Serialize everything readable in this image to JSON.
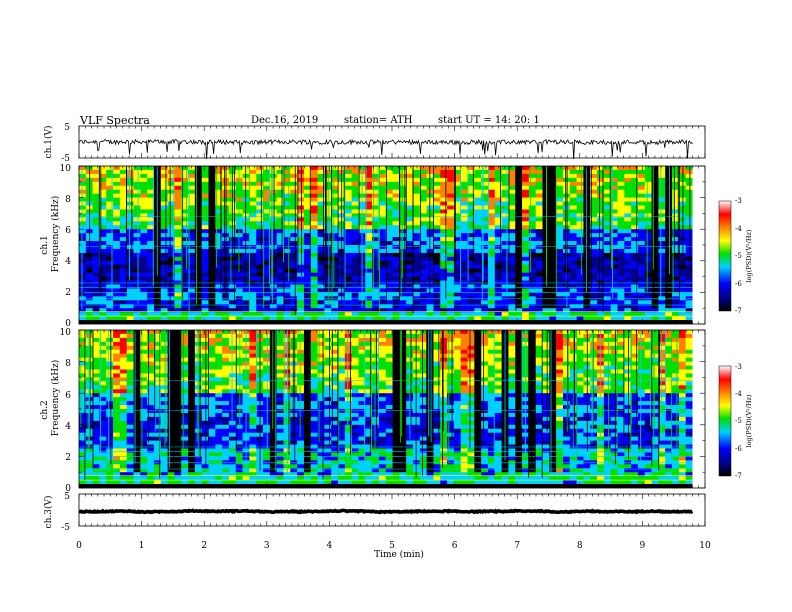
{
  "header": {
    "title": "VLF  Spectra",
    "date": "Dec.16, 2019",
    "station": "station= ATH",
    "start": "start  UT  =   14: 20: 1"
  },
  "colors": {
    "black": "#000000",
    "dark_blue": "#00008b",
    "blue": "#0000ff",
    "cyan": "#00d0ff",
    "green": "#00e000",
    "yellow": "#ffff00",
    "orange": "#ff8000",
    "red": "#ff0000",
    "white": "#ffffff"
  },
  "chart_data": [
    {
      "type": "line",
      "name": "ch1-waveform",
      "ylabel": "ch.1(V)",
      "ylim": [
        -5,
        5
      ],
      "yticks": [
        "5",
        "-5"
      ],
      "xlim": [
        0,
        10
      ],
      "description_values": {
        "mean_level": 0.0,
        "noise_amplitude": 0.7
      }
    },
    {
      "type": "heatmap",
      "name": "ch1-spectrogram",
      "ylabel_line1": "ch.1",
      "ylabel_line2": "Frequency  (kHz)",
      "ylim": [
        0,
        10
      ],
      "yticks": [
        "0",
        "2",
        "4",
        "6",
        "8",
        "10"
      ],
      "xlim": [
        0,
        9.8
      ],
      "colorbar": {
        "label": "log(PSD)(V²/Hz)",
        "range": [
          -7,
          -3
        ],
        "ticks": [
          "-3",
          "-4",
          "-5",
          "-6",
          "-7"
        ]
      }
    },
    {
      "type": "heatmap",
      "name": "ch2-spectrogram",
      "ylabel_line1": "ch.2",
      "ylabel_line2": "Frequency  (kHz)",
      "ylim": [
        0,
        10
      ],
      "yticks": [
        "0",
        "2",
        "4",
        "6",
        "8",
        "10"
      ],
      "xlim": [
        0,
        9.8
      ],
      "colorbar": {
        "label": "log(PSD)(V²/Hz)",
        "range": [
          -7,
          -3
        ],
        "ticks": [
          "-3",
          "-4",
          "-5",
          "-6",
          "-7"
        ]
      }
    },
    {
      "type": "line",
      "name": "ch3-waveform",
      "ylabel": "ch.3(V)",
      "ylim": [
        -5,
        5
      ],
      "yticks": [
        "5",
        "-5"
      ],
      "xlim": [
        0,
        10
      ],
      "xlabel": "Time  (min)",
      "xticks": [
        "0",
        "1",
        "2",
        "3",
        "4",
        "5",
        "6",
        "7",
        "8",
        "9",
        "10"
      ],
      "description_values": {
        "mean_level": -0.5,
        "noise_amplitude": 0.15
      }
    }
  ]
}
